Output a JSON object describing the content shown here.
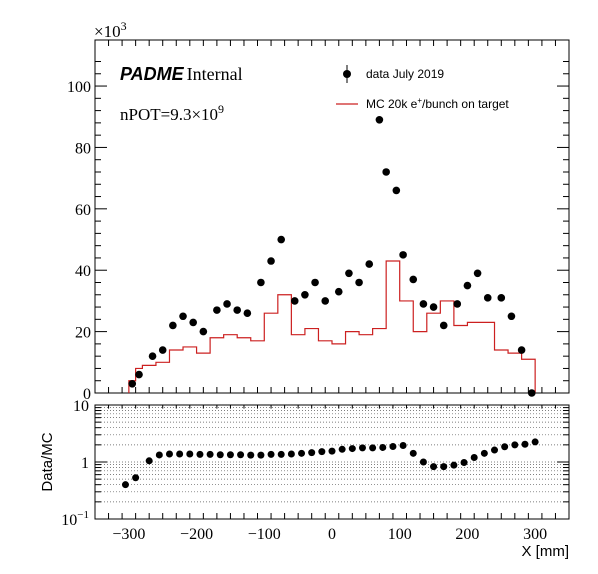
{
  "chart_data": [
    {
      "type": "scatter",
      "panel": "top",
      "experiment_label": "PADME",
      "experiment_status": "Internal",
      "annotation": {
        "prefix": "nPOT=9.3×10",
        "exponent": "9"
      },
      "y_multiplier": {
        "base": "×10",
        "exponent": "3"
      },
      "xlim": [
        -350,
        350
      ],
      "ylim": [
        0,
        115
      ],
      "y_ticks": [
        0,
        20,
        40,
        60,
        80,
        100
      ],
      "y_tick_labels": [
        "0",
        "20",
        "40",
        "60",
        "80",
        "100"
      ],
      "legend_position": "top-right",
      "series": [
        {
          "name": "data July 2019",
          "style": "markers",
          "color": "#000000",
          "x": [
            -295,
            -285,
            -265,
            -250,
            -235,
            -220,
            -205,
            -190,
            -170,
            -155,
            -140,
            -125,
            -105,
            -90,
            -75,
            -55,
            -40,
            -25,
            -10,
            10,
            25,
            40,
            55,
            70,
            80,
            95,
            105,
            120,
            135,
            150,
            165,
            185,
            200,
            215,
            230,
            250,
            265,
            280,
            295
          ],
          "y": [
            3,
            6,
            12,
            14,
            22,
            25,
            23,
            20,
            27,
            29,
            27,
            26,
            36,
            43,
            50,
            30,
            32,
            36,
            30,
            33,
            39,
            36,
            42,
            89,
            72,
            66,
            45,
            37,
            29,
            28,
            22,
            29,
            35,
            39,
            31,
            31,
            25,
            14,
            0
          ]
        },
        {
          "name": "MC 20k e",
          "name_sup": "+",
          "name_suffix": "/bunch on target",
          "style": "step",
          "color": "#cc2020",
          "bin_edges": [
            -300,
            -290,
            -280,
            -270,
            -260,
            -250,
            -240,
            -230,
            -220,
            -210,
            -200,
            -190,
            -180,
            -170,
            -160,
            -150,
            -140,
            -130,
            -120,
            -110,
            -100,
            -90,
            -80,
            -70,
            -60,
            -50,
            -40,
            -30,
            -20,
            -10,
            0,
            10,
            20,
            30,
            40,
            50,
            60,
            70,
            80,
            90,
            100,
            110,
            120,
            130,
            140,
            150,
            160,
            170,
            180,
            190,
            200,
            210,
            220,
            230,
            240,
            250,
            260,
            270,
            280,
            290,
            300
          ],
          "values": [
            4,
            8,
            9,
            9,
            10,
            10,
            14,
            14,
            15,
            15,
            13,
            13,
            18,
            18,
            19,
            19,
            18,
            18,
            17,
            17,
            26,
            26,
            32,
            32,
            19,
            19,
            21,
            21,
            17,
            17,
            16,
            16,
            20,
            20,
            19,
            19,
            21,
            21,
            43,
            43,
            30,
            30,
            20,
            20,
            26,
            26,
            30,
            30,
            22,
            22,
            23,
            23,
            23,
            23,
            14,
            14,
            13,
            13,
            11,
            11
          ]
        }
      ]
    },
    {
      "type": "scatter",
      "panel": "bottom-ratio",
      "ylabel": "Data/MC",
      "xlabel": "X [mm]",
      "xlim": [
        -350,
        350
      ],
      "ylim": [
        0.1,
        10
      ],
      "log_y": true,
      "grid_y": true,
      "x_ticks": [
        -300,
        -200,
        -100,
        0,
        100,
        200,
        300
      ],
      "x_tick_labels": [
        "−300",
        "−200",
        "−100",
        "0",
        "100",
        "200",
        "300"
      ],
      "y_tick_labels": [
        {
          "value": 10,
          "base": "10",
          "exp": ""
        },
        {
          "value": 1,
          "base": "1",
          "exp": ""
        },
        {
          "value": 0.1,
          "base": "10",
          "exp": "−1"
        }
      ],
      "series": [
        {
          "name": "Data/MC",
          "color": "#000000",
          "x": [
            -305,
            -290,
            -270,
            -255,
            -240,
            -225,
            -210,
            -195,
            -180,
            -165,
            -150,
            -135,
            -120,
            -105,
            -90,
            -75,
            -60,
            -45,
            -30,
            -15,
            0,
            15,
            30,
            45,
            60,
            75,
            90,
            105,
            120,
            135,
            150,
            165,
            180,
            195,
            210,
            225,
            240,
            255,
            270,
            285,
            300
          ],
          "y": [
            0.4,
            0.53,
            1.05,
            1.33,
            1.38,
            1.38,
            1.38,
            1.36,
            1.36,
            1.34,
            1.34,
            1.34,
            1.32,
            1.32,
            1.36,
            1.36,
            1.38,
            1.42,
            1.46,
            1.52,
            1.55,
            1.67,
            1.72,
            1.77,
            1.77,
            1.8,
            1.87,
            1.95,
            1.42,
            1.0,
            0.83,
            0.83,
            0.88,
            0.98,
            1.2,
            1.42,
            1.62,
            1.85,
            2.0,
            2.05,
            2.25
          ]
        }
      ]
    }
  ]
}
